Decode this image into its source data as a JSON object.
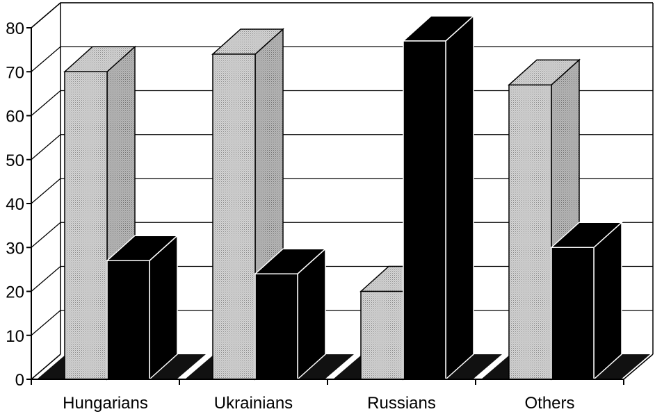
{
  "chart_data": {
    "type": "bar",
    "style": "3d-clustered",
    "categories": [
      "Hungarians",
      "Ukrainians",
      "Russians",
      "Others"
    ],
    "series": [
      {
        "values": [
          70,
          74,
          20,
          67
        ],
        "color": "#c8c8c8"
      },
      {
        "values": [
          27,
          24,
          77,
          30
        ],
        "color": "#000000"
      }
    ],
    "ylim": [
      0,
      80
    ],
    "yticks": [
      "0",
      "10",
      "20",
      "30",
      "40",
      "50",
      "60",
      "70",
      "80"
    ],
    "grid": true,
    "legend": "none"
  }
}
